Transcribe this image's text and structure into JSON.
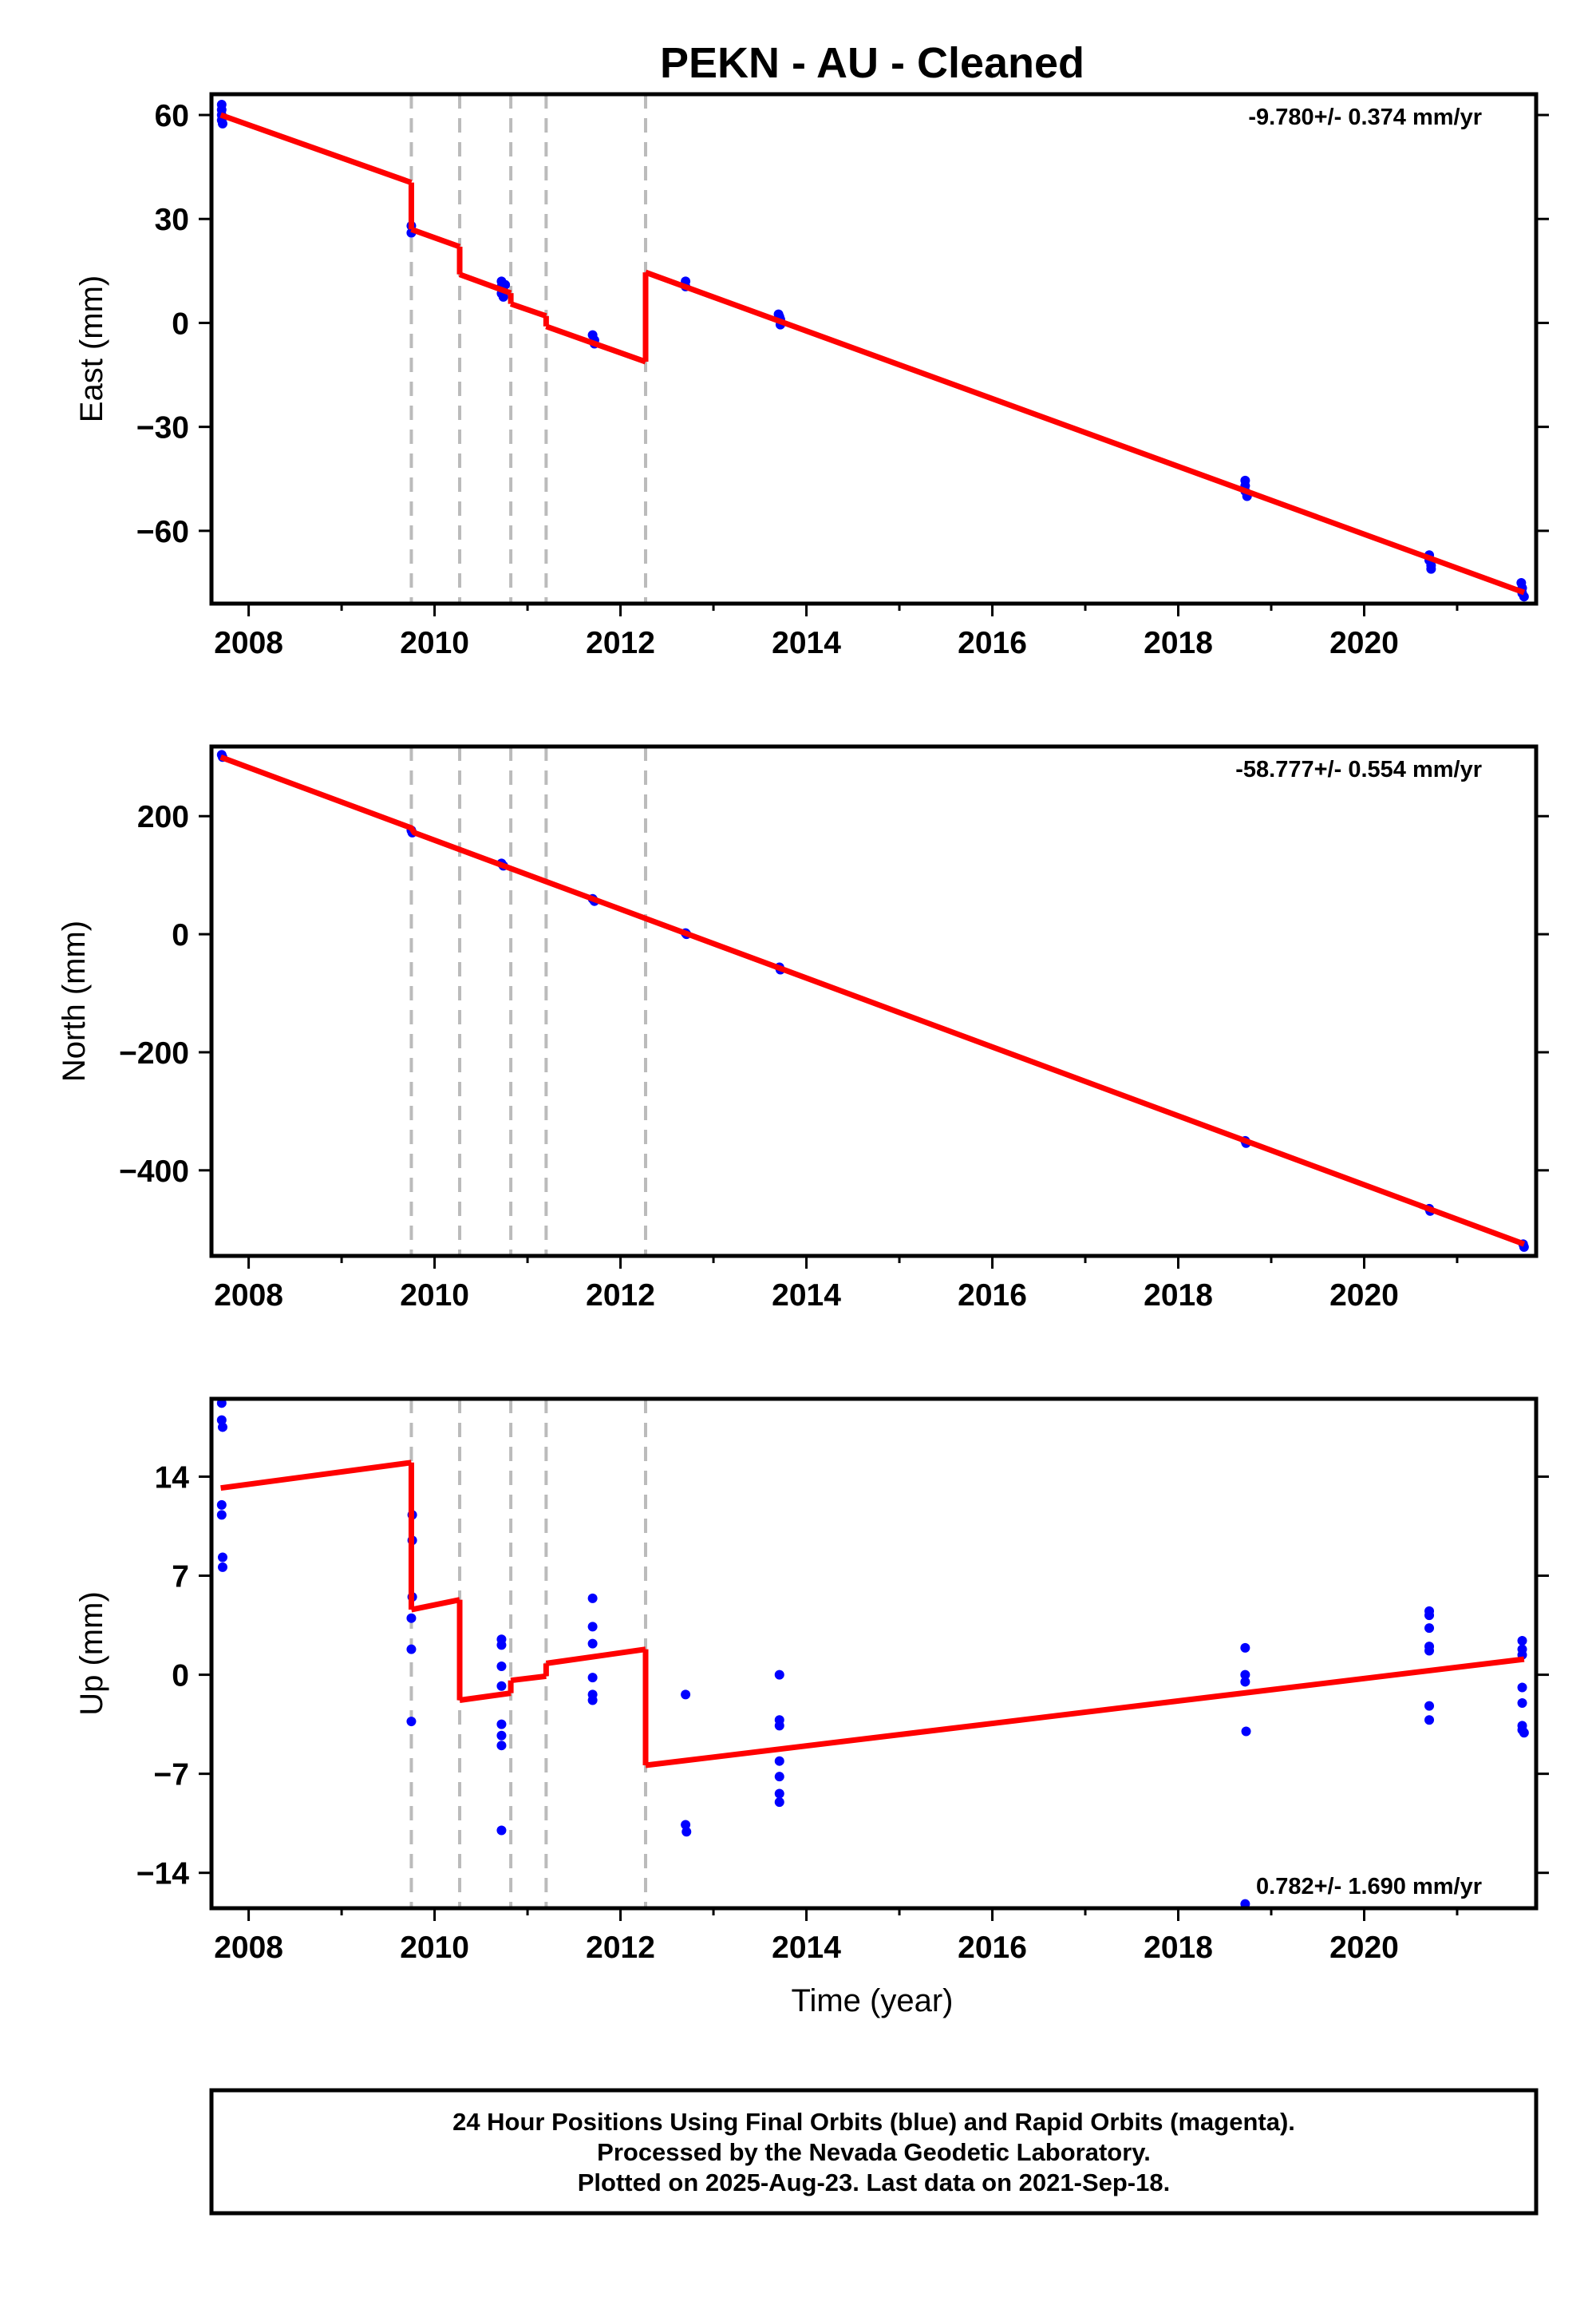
{
  "title": "PEKN  - AU - Cleaned",
  "x_axis_label": "Time (year)",
  "footer": {
    "line1": "24 Hour Positions Using Final Orbits (blue) and Rapid Orbits (magenta).",
    "line2": "Processed by the Nevada Geodetic Laboratory.",
    "line3": "Plotted on 2025-Aug-23. Last data on 2021-Sep-18."
  },
  "colors": {
    "data_points": "#0000ff",
    "model_line": "#ff0000",
    "event_lines": "#bbbbbb",
    "frame": "#000000"
  },
  "chart_data": [
    {
      "type": "scatter",
      "panel": "east",
      "ylabel": "East (mm)",
      "rate_label": "-9.780+/- 0.374 mm/yr",
      "rate_label_position": "top-right",
      "xlim": [
        2007.6,
        2021.85
      ],
      "ylim": [
        -81,
        66
      ],
      "x_ticks": [
        2008,
        2010,
        2012,
        2014,
        2016,
        2018,
        2020
      ],
      "y_ticks": [
        60,
        30,
        0,
        -30,
        -60
      ],
      "y_tick_labels": [
        "60",
        "30",
        "0",
        "−30",
        "−60"
      ],
      "event_lines_x": [
        2009.75,
        2010.27,
        2010.82,
        2011.2,
        2012.27
      ],
      "series": [
        {
          "kind": "points",
          "color": "#0000ff",
          "points": [
            [
              2007.71,
              63
            ],
            [
              2007.71,
              61.5
            ],
            [
              2007.71,
              60
            ],
            [
              2007.71,
              58.5
            ],
            [
              2007.72,
              57.5
            ],
            [
              2009.75,
              28
            ],
            [
              2009.75,
              26
            ],
            [
              2010.72,
              12
            ],
            [
              2010.72,
              10.5
            ],
            [
              2010.72,
              8.5
            ],
            [
              2010.74,
              7.5
            ],
            [
              2010.76,
              11
            ],
            [
              2011.7,
              -3.5
            ],
            [
              2011.72,
              -5
            ],
            [
              2011.72,
              -6
            ],
            [
              2012.7,
              12
            ],
            [
              2012.7,
              10.5
            ],
            [
              2013.7,
              2.5
            ],
            [
              2013.72,
              1
            ],
            [
              2013.72,
              -0.5
            ],
            [
              2013.71,
              1.8
            ],
            [
              2018.72,
              -45.5
            ],
            [
              2018.72,
              -47
            ],
            [
              2018.72,
              -48.5
            ],
            [
              2018.74,
              -50
            ],
            [
              2020.7,
              -67
            ],
            [
              2020.7,
              -68.5
            ],
            [
              2020.72,
              -70
            ],
            [
              2020.72,
              -71
            ],
            [
              2021.69,
              -75
            ],
            [
              2021.7,
              -76.5
            ],
            [
              2021.7,
              -78
            ],
            [
              2021.72,
              -79
            ]
          ]
        },
        {
          "kind": "model",
          "color": "#ff0000",
          "segments": [
            [
              [
                2007.7,
                60
              ],
              [
                2009.75,
                40.5
              ]
            ],
            [
              [
                2009.75,
                27
              ],
              [
                2010.27,
                22
              ]
            ],
            [
              [
                2010.27,
                14
              ],
              [
                2010.82,
                8.6
              ]
            ],
            [
              [
                2010.82,
                5.5
              ],
              [
                2011.2,
                2
              ]
            ],
            [
              [
                2011.2,
                -1
              ],
              [
                2012.27,
                -11.2
              ]
            ],
            [
              [
                2012.27,
                14.6
              ],
              [
                2021.72,
                -77.8
              ]
            ]
          ],
          "jumps": [
            [
              2009.75,
              40.5,
              27
            ],
            [
              2010.27,
              22,
              14
            ],
            [
              2010.82,
              8.6,
              5.5
            ],
            [
              2011.2,
              2,
              -1
            ],
            [
              2012.27,
              -11.2,
              14.6
            ]
          ]
        }
      ]
    },
    {
      "type": "scatter",
      "panel": "north",
      "ylabel": "North (mm)",
      "rate_label": "-58.777+/- 0.554 mm/yr",
      "rate_label_position": "top-right",
      "xlim": [
        2007.6,
        2021.85
      ],
      "ylim": [
        -545,
        318
      ],
      "x_ticks": [
        2008,
        2010,
        2012,
        2014,
        2016,
        2018,
        2020
      ],
      "y_ticks": [
        200,
        0,
        -200,
        -400
      ],
      "y_tick_labels": [
        "200",
        "0",
        "−200",
        "−400"
      ],
      "event_lines_x": [
        2009.75,
        2010.27,
        2010.82,
        2011.2,
        2012.27
      ],
      "series": [
        {
          "kind": "points",
          "color": "#0000ff",
          "points": [
            [
              2007.71,
              304
            ],
            [
              2007.72,
              300
            ],
            [
              2009.75,
              176
            ],
            [
              2009.76,
              172
            ],
            [
              2010.72,
              120
            ],
            [
              2010.74,
              116
            ],
            [
              2011.7,
              60
            ],
            [
              2011.72,
              56
            ],
            [
              2012.7,
              2
            ],
            [
              2012.71,
              0
            ],
            [
              2013.71,
              -56
            ],
            [
              2013.72,
              -60
            ],
            [
              2018.72,
              -350
            ],
            [
              2018.73,
              -354
            ],
            [
              2020.7,
              -465
            ],
            [
              2020.71,
              -469
            ],
            [
              2021.71,
              -525
            ],
            [
              2021.72,
              -530
            ]
          ]
        },
        {
          "kind": "model",
          "color": "#ff0000",
          "segments": [
            [
              [
                2007.7,
                300
              ],
              [
                2009.75,
                180
              ],
              [
                2009.78,
                172
              ],
              [
                2021.72,
                -525
              ]
            ]
          ],
          "jumps": []
        }
      ]
    },
    {
      "type": "scatter",
      "panel": "up",
      "ylabel": "Up (mm)",
      "rate_label": "0.782+/- 1.690 mm/yr",
      "rate_label_position": "bottom-right",
      "xlim": [
        2007.6,
        2021.85
      ],
      "ylim": [
        -16.5,
        19.5
      ],
      "x_ticks": [
        2008,
        2010,
        2012,
        2014,
        2016,
        2018,
        2020
      ],
      "y_ticks": [
        14,
        7,
        0,
        -7,
        -14
      ],
      "y_tick_labels": [
        "14",
        "7",
        "0",
        "−7",
        "−14"
      ],
      "event_lines_x": [
        2009.75,
        2010.27,
        2010.82,
        2011.2,
        2012.27
      ],
      "series": [
        {
          "kind": "points",
          "color": "#0000ff",
          "points": [
            [
              2007.71,
              19.2
            ],
            [
              2007.71,
              18
            ],
            [
              2007.72,
              17.5
            ],
            [
              2007.71,
              12
            ],
            [
              2007.71,
              11.3
            ],
            [
              2007.72,
              8.3
            ],
            [
              2007.72,
              7.6
            ],
            [
              2009.76,
              11.3
            ],
            [
              2009.76,
              9.5
            ],
            [
              2009.76,
              5.5
            ],
            [
              2009.75,
              4
            ],
            [
              2009.75,
              1.8
            ],
            [
              2009.75,
              -3.3
            ],
            [
              2010.72,
              2.5
            ],
            [
              2010.72,
              2.1
            ],
            [
              2010.72,
              0.6
            ],
            [
              2010.72,
              -0.8
            ],
            [
              2010.72,
              -3.5
            ],
            [
              2010.72,
              -4.3
            ],
            [
              2010.72,
              -5
            ],
            [
              2010.72,
              -11
            ],
            [
              2011.7,
              5.4
            ],
            [
              2011.7,
              3.4
            ],
            [
              2011.7,
              2.2
            ],
            [
              2011.7,
              -0.2
            ],
            [
              2011.7,
              -1.4
            ],
            [
              2011.7,
              -1.8
            ],
            [
              2012.7,
              -1.4
            ],
            [
              2012.7,
              -10.6
            ],
            [
              2012.71,
              -11.1
            ],
            [
              2013.71,
              0
            ],
            [
              2013.71,
              -3.2
            ],
            [
              2013.71,
              -3.6
            ],
            [
              2013.71,
              -6.1
            ],
            [
              2013.71,
              -7.2
            ],
            [
              2013.71,
              -8.4
            ],
            [
              2013.71,
              -9
            ],
            [
              2018.72,
              1.9
            ],
            [
              2018.72,
              0
            ],
            [
              2018.72,
              -0.5
            ],
            [
              2018.73,
              -4
            ],
            [
              2018.72,
              -16.2
            ],
            [
              2020.7,
              4.5
            ],
            [
              2020.7,
              4.2
            ],
            [
              2020.7,
              3.3
            ],
            [
              2020.7,
              2
            ],
            [
              2020.7,
              1.7
            ],
            [
              2020.7,
              -2.2
            ],
            [
              2020.7,
              -3.2
            ],
            [
              2021.7,
              2.4
            ],
            [
              2021.7,
              1.8
            ],
            [
              2021.7,
              1.4
            ],
            [
              2021.7,
              -0.9
            ],
            [
              2021.7,
              -2
            ],
            [
              2021.7,
              -3.6
            ],
            [
              2021.7,
              -3.9
            ],
            [
              2021.72,
              -4.1
            ]
          ]
        },
        {
          "kind": "model",
          "color": "#ff0000",
          "segments": [
            [
              [
                2007.7,
                13.2
              ],
              [
                2009.75,
                15
              ]
            ],
            [
              [
                2009.75,
                4.6
              ],
              [
                2010.27,
                5.3
              ]
            ],
            [
              [
                2010.27,
                -1.8
              ],
              [
                2010.82,
                -1.3
              ]
            ],
            [
              [
                2010.82,
                -0.4
              ],
              [
                2011.2,
                -0.1
              ]
            ],
            [
              [
                2011.2,
                0.8
              ],
              [
                2012.27,
                1.8
              ]
            ],
            [
              [
                2012.27,
                -6.4
              ],
              [
                2021.72,
                1.1
              ]
            ]
          ],
          "jumps": [
            [
              2009.75,
              15,
              4.6
            ],
            [
              2010.27,
              5.3,
              -1.8
            ],
            [
              2010.82,
              -1.3,
              -0.4
            ],
            [
              2011.2,
              -0.1,
              0.8
            ],
            [
              2012.27,
              1.8,
              -6.4
            ]
          ]
        }
      ]
    }
  ]
}
